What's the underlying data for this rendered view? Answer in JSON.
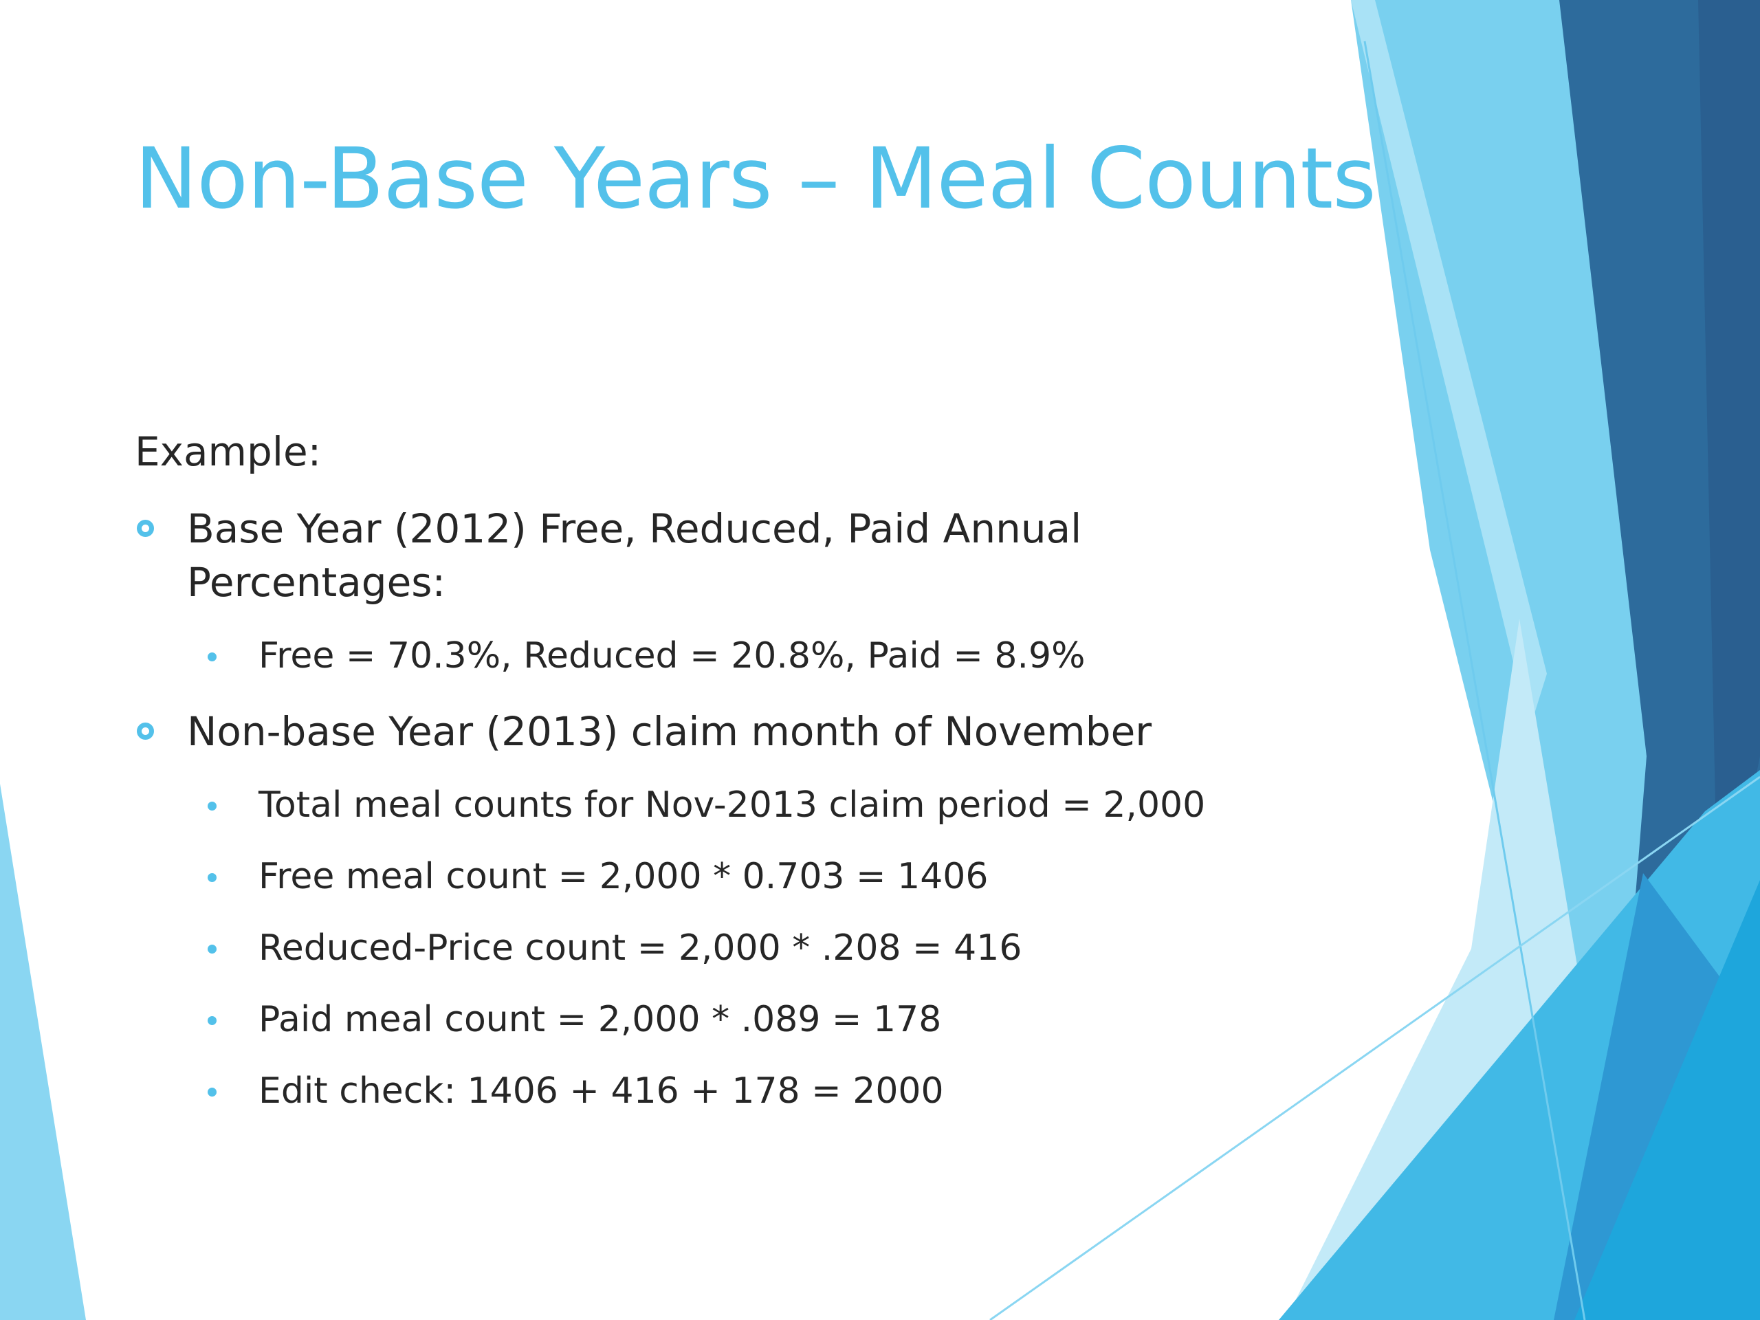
{
  "slide": {
    "title": "Non-Base Years – Meal Counts",
    "intro": "Example:",
    "bullets": [
      {
        "text": "Base Year (2012) Free, Reduced, Paid Annual Percentages:",
        "subs": [
          "Free = 70.3%, Reduced = 20.8%, Paid = 8.9%"
        ]
      },
      {
        "text": "Non-base Year (2013) claim month of November",
        "subs": [
          "Total meal counts for Nov-2013 claim period = 2,000",
          "Free meal count = 2,000 * 0.703 = 1406",
          "Reduced-Price count = 2,000 * .208 = 416",
          "Paid meal count = 2,000 * .089 = 178",
          "Edit check: 1406 + 416 + 178 = 2000"
        ]
      }
    ]
  },
  "colors": {
    "title": "#53c1ea",
    "body_text": "#262626",
    "bullet": "#53c1ea",
    "accent_light": "#7fd3f0",
    "accent_mid": "#31a8dd",
    "accent_dark": "#2f6b9d"
  }
}
